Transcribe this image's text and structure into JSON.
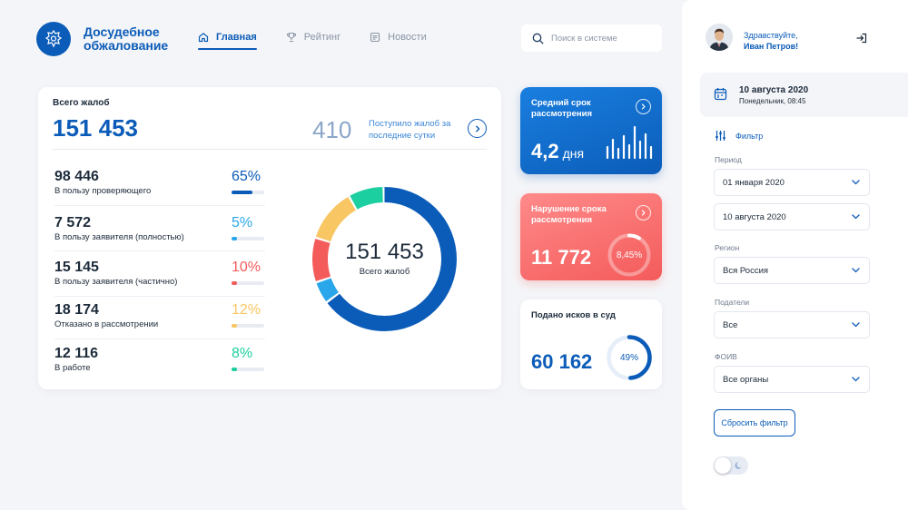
{
  "header": {
    "brand": "Досудебное обжалование",
    "nav": [
      {
        "label": "Главная",
        "icon": "home-icon",
        "active": true
      },
      {
        "label": "Рейтинг",
        "icon": "trophy-icon",
        "active": false
      },
      {
        "label": "Новости",
        "icon": "news-icon",
        "active": false
      }
    ],
    "search_placeholder": "Поиск в системе"
  },
  "summary": {
    "title": "Всего жалоб",
    "total": "151 453",
    "today_value": "410",
    "today_label": "Поступило жалоб за последние сутки",
    "stats": [
      {
        "value": "98 446",
        "label": "В пользу проверяющего",
        "percent": "65%",
        "fraction": 0.65,
        "color": "#0b5cb8"
      },
      {
        "value": "7 572",
        "label": "В пользу заявителя (полностью)",
        "percent": "5%",
        "fraction": 0.05,
        "color": "#2aa7ea"
      },
      {
        "value": "15 145",
        "label": "В пользу заявителя (частично)",
        "percent": "10%",
        "fraction": 0.1,
        "color": "#f45b5b"
      },
      {
        "value": "18 174",
        "label": "Отказано в рассмотрении",
        "percent": "12%",
        "fraction": 0.12,
        "color": "#f8c663"
      },
      {
        "value": "12 116",
        "label": "В работе",
        "percent": "8%",
        "fraction": 0.08,
        "color": "#1ccfa0"
      }
    ],
    "donut_value": "151 453",
    "donut_label": "Всего жалоб"
  },
  "cards": {
    "avg_time": {
      "title": "Средний срок рассмотрения",
      "value": "4,2",
      "unit": "дня"
    },
    "violation": {
      "title": "Нарушение срока рассмотрения",
      "value": "11 772",
      "percent": "8,45%",
      "fraction": 0.0845
    },
    "court": {
      "title": "Подано исков в суд",
      "value": "60 162",
      "percent": "49%",
      "fraction": 0.49
    }
  },
  "user": {
    "greeting": "Здравствуйте,",
    "name": "Иван Петров!"
  },
  "date": {
    "date": "10 августа 2020",
    "weekday_time": "Понедельник, 08:45"
  },
  "filter": {
    "title": "Фильтр",
    "period_label": "Период",
    "period_from": "01 января 2020",
    "period_to": "10 августа 2020",
    "region_label": "Регион",
    "region": "Вся Россия",
    "applicants_label": "Податели",
    "applicants": "Все",
    "foiv_label": "ФОИВ",
    "foiv": "Все органы",
    "reset": "Сбросить фильтр"
  },
  "colors": {
    "accent": "#0b5cb8",
    "danger": "#f45b5b",
    "warning": "#f8c663",
    "success": "#1ccfa0",
    "info": "#2aa7ea"
  }
}
